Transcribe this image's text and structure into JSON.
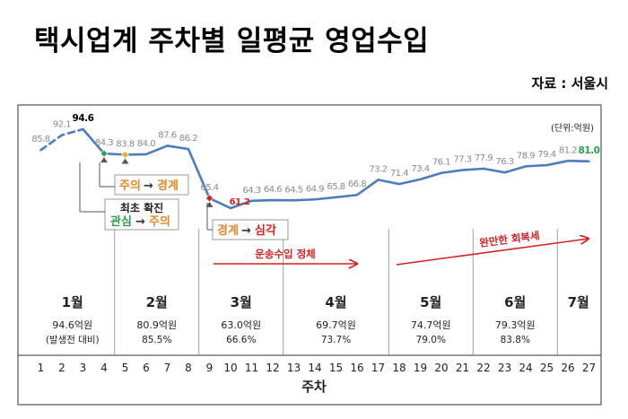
{
  "title": "택시업계 주차별 일평균 영업수입",
  "source": "자료 : 서울시",
  "chart_data": {
    "type": "line",
    "unit": "(단위:억원)",
    "xlabel": "주차",
    "ylabel": "",
    "grid": false,
    "x": [
      1,
      2,
      3,
      4,
      5,
      6,
      7,
      8,
      9,
      10,
      11,
      12,
      13,
      14,
      15,
      16,
      17,
      18,
      19,
      20,
      21,
      22,
      23,
      24,
      25,
      26,
      27
    ],
    "series": [
      {
        "values": [
          85.8,
          92.1,
          94.6,
          84.3,
          83.8,
          84.0,
          87.6,
          86.2,
          65.4,
          61.2,
          64.3,
          64.6,
          64.5,
          64.9,
          65.8,
          66.8,
          73.2,
          71.4,
          73.4,
          76.1,
          77.3,
          77.9,
          76.3,
          78.9,
          79.4,
          81.2,
          81.0
        ]
      }
    ],
    "labels": [
      "85.8",
      "92.1",
      "94.6",
      "84.3",
      "83.8",
      "84.0",
      "87.6",
      "86.2",
      "65.4",
      "61.2",
      "64.3",
      "64.6",
      "64.5",
      "64.9",
      "65.8",
      "66.8",
      "73.2",
      "71.4",
      "73.4",
      "76.1",
      "77.3",
      "77.9",
      "76.3",
      "78.9",
      "79.4",
      "81.2",
      "81.0"
    ],
    "ylim": [
      50,
      100
    ],
    "months": [
      {
        "label": "1월",
        "value": "94.6억원",
        "note": "(발생전 대비)"
      },
      {
        "label": "2월",
        "value": "80.9억원",
        "note": "85.5%"
      },
      {
        "label": "3월",
        "value": "63.0억원",
        "note": "66.6%"
      },
      {
        "label": "4월",
        "value": "69.7억원",
        "note": "73.7%"
      },
      {
        "label": "5월",
        "value": "74.7억원",
        "note": "79.0%"
      },
      {
        "label": "6월",
        "value": "79.3억원",
        "note": "83.8%"
      },
      {
        "label": "7월",
        "value": "",
        "note": ""
      }
    ],
    "annotations": {
      "attention": {
        "a": "주의",
        "b": "경계"
      },
      "first": {
        "line1": "최초 확진",
        "a": "관심",
        "b": "주의"
      },
      "serious": {
        "a": "경계",
        "b": "심각"
      },
      "stagnant": "운송수입 정체",
      "recovery": "완만한 회복세"
    },
    "colors": {
      "line": "#4a7dc0",
      "orange": "#e0892a",
      "green": "#2e9e4a",
      "red": "#d42020",
      "gray": "#808080"
    }
  }
}
